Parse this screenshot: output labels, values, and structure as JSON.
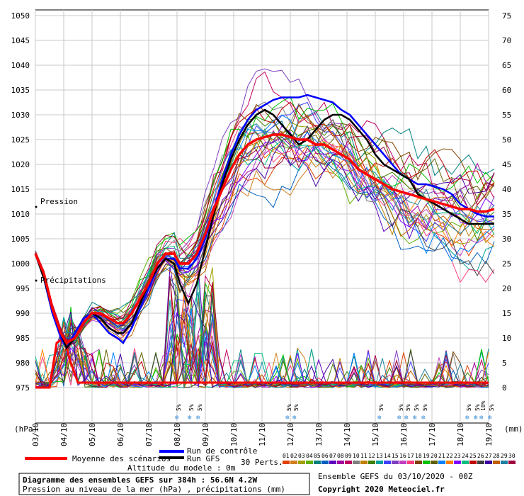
{
  "chart_data": {
    "type": "line",
    "left_axis": {
      "label": "(hPa)",
      "ylim": [
        975,
        1050
      ],
      "ticks": [
        975,
        980,
        985,
        990,
        995,
        1000,
        1005,
        1010,
        1015,
        1020,
        1025,
        1030,
        1035,
        1040,
        1045,
        1050
      ]
    },
    "right_axis": {
      "label": "(mm)",
      "ylim": [
        0,
        75
      ],
      "ticks": [
        0,
        5,
        10,
        15,
        20,
        25,
        30,
        35,
        40,
        45,
        50,
        55,
        60,
        65,
        70,
        75
      ]
    },
    "x_labels": [
      "03/10",
      "04/10",
      "05/10",
      "06/10",
      "07/10",
      "08/10",
      "09/10",
      "10/10",
      "11/10",
      "12/10",
      "13/10",
      "14/10",
      "15/10",
      "16/10",
      "17/10",
      "18/10",
      "19/10"
    ],
    "annotations": {
      "pression": "Pression",
      "precip": "Précipitations"
    },
    "snow_markers": [
      {
        "x": 8.05,
        "labels": [
          "5%"
        ]
      },
      {
        "x": 8.5,
        "labels": [
          "5%"
        ]
      },
      {
        "x": 8.8,
        "labels": [
          "5%"
        ]
      },
      {
        "x": 11.95,
        "labels": [
          "5%"
        ]
      },
      {
        "x": 12.2,
        "labels": [
          "5%"
        ]
      },
      {
        "x": 15.2,
        "labels": [
          "5%"
        ]
      },
      {
        "x": 15.9,
        "labels": [
          "5%"
        ]
      },
      {
        "x": 16.15,
        "labels": [
          "5%"
        ]
      },
      {
        "x": 16.45,
        "labels": [
          "5%"
        ]
      },
      {
        "x": 16.75,
        "labels": [
          "5%"
        ]
      },
      {
        "x": 18.3,
        "labels": [
          "5%"
        ]
      },
      {
        "x": 18.6,
        "labels": [
          "5%"
        ]
      },
      {
        "x": 18.8,
        "labels": [
          "10%"
        ]
      },
      {
        "x": 19.1,
        "labels": [
          "5%"
        ]
      }
    ],
    "series": [
      {
        "name": "Moyenne des scénarios",
        "color": "#ff0000",
        "x": [
          3,
          3.3,
          3.6,
          3.9,
          4.1,
          4.4,
          4.7,
          5,
          5.3,
          5.6,
          5.9,
          6.1,
          6.4,
          6.7,
          7,
          7.3,
          7.6,
          7.9,
          8.1,
          8.4,
          8.7,
          9,
          9.3,
          9.6,
          9.9,
          10.2,
          10.5,
          10.8,
          11.1,
          11.4,
          11.7,
          12,
          12.3,
          12.6,
          12.9,
          13.2,
          13.5,
          13.8,
          14.1,
          14.4,
          14.7,
          15,
          15.3,
          15.6,
          15.9,
          16.2,
          16.5,
          16.8,
          17.1,
          17.4,
          17.7,
          18,
          18.3,
          18.6,
          18.9,
          19.2
        ],
        "values": [
          1002,
          998,
          991,
          986,
          984,
          985,
          988,
          990,
          990,
          989,
          988,
          988,
          990,
          993,
          996,
          1000,
          1002,
          1002,
          1000,
          1000,
          1002,
          1006,
          1011,
          1015,
          1019,
          1022,
          1024,
          1025,
          1025.5,
          1026,
          1026,
          1025.5,
          1025,
          1025,
          1024,
          1024,
          1023,
          1022,
          1021,
          1019,
          1018,
          1017,
          1016,
          1015,
          1014.5,
          1014,
          1013.5,
          1013,
          1012.5,
          1012,
          1011.5,
          1011,
          1011,
          1010.5,
          1010.5,
          1011
        ]
      },
      {
        "name": "Run de contrôle",
        "color": "#0000ff",
        "x": [
          3,
          3.3,
          3.6,
          3.9,
          4.1,
          4.4,
          4.7,
          5,
          5.3,
          5.6,
          5.9,
          6.1,
          6.4,
          6.7,
          7,
          7.3,
          7.6,
          7.9,
          8.1,
          8.4,
          8.7,
          9,
          9.3,
          9.6,
          9.9,
          10.2,
          10.5,
          10.8,
          11.1,
          11.4,
          11.7,
          12,
          12.3,
          12.6,
          12.9,
          13.2,
          13.5,
          13.8,
          14.1,
          14.4,
          14.7,
          15,
          15.3,
          15.6,
          15.9,
          16.2,
          16.5,
          16.8,
          17.1,
          17.4,
          17.7,
          18,
          18.3,
          18.6,
          18.9,
          19.2
        ],
        "values": [
          1002,
          997,
          990,
          985,
          983,
          986,
          989,
          990,
          988,
          986,
          985,
          984,
          987,
          991,
          995,
          999,
          1001,
          1001,
          999,
          999,
          1001,
          1005,
          1011,
          1017,
          1022,
          1026,
          1029,
          1031,
          1032,
          1033,
          1033.5,
          1033.5,
          1033.5,
          1034,
          1033.5,
          1033,
          1032.5,
          1031,
          1030,
          1028,
          1026,
          1024,
          1022,
          1020,
          1018,
          1017,
          1016,
          1016,
          1015.5,
          1015,
          1014,
          1012,
          1011,
          1010,
          1009.5,
          1009.5
        ]
      },
      {
        "name": "Run GFS",
        "color": "#000000",
        "x": [
          3,
          3.3,
          3.6,
          3.9,
          4.1,
          4.4,
          4.7,
          5,
          5.3,
          5.6,
          5.9,
          6.1,
          6.4,
          6.7,
          7,
          7.3,
          7.6,
          7.9,
          8.1,
          8.4,
          8.7,
          9,
          9.3,
          9.6,
          9.9,
          10.2,
          10.5,
          10.8,
          11.1,
          11.4,
          11.7,
          12,
          12.3,
          12.6,
          12.9,
          13.2,
          13.5,
          13.8,
          14.1,
          14.4,
          14.7,
          15,
          15.3,
          15.6,
          15.9,
          16.2,
          16.5,
          16.8,
          17.1,
          17.4,
          17.7,
          18,
          18.3,
          18.6,
          18.9,
          19.2
        ],
        "values": [
          1002,
          997,
          991,
          986,
          983,
          985,
          988,
          990,
          989,
          987,
          986,
          986,
          988,
          992,
          996,
          999,
          1001,
          1000,
          996,
          992,
          996,
          1003,
          1010,
          1016,
          1021,
          1025,
          1028,
          1030,
          1031,
          1030,
          1028,
          1026,
          1024,
          1025,
          1027,
          1029,
          1030,
          1030,
          1029,
          1027,
          1025,
          1022,
          1020,
          1019,
          1018,
          1017,
          1014,
          1013,
          1012,
          1011,
          1010,
          1009,
          1008,
          1008,
          1008,
          1008
        ]
      }
    ],
    "ensemble_count": 30,
    "legend": {
      "control": "Run de contrôle",
      "gfs": "Run GFS",
      "mean": "Moyenne des scénarios",
      "perts": "30 Perts.",
      "pert_labels": [
        "01",
        "02",
        "03",
        "04",
        "05",
        "06",
        "07",
        "08",
        "09",
        "10",
        "11",
        "12",
        "13",
        "14",
        "15",
        "16",
        "17",
        "18",
        "19",
        "20",
        "21",
        "22",
        "23",
        "24",
        "25",
        "26",
        "27",
        "28",
        "29",
        "30"
      ],
      "pert_colors": [
        "#e04000",
        "#d08020",
        "#a0a000",
        "#60b000",
        "#008080",
        "#0060c0",
        "#6000c0",
        "#a000a0",
        "#c00060",
        "#808080",
        "#c08000",
        "#408000",
        "#00a0a0",
        "#4040ff",
        "#8040c0",
        "#c040c0",
        "#ff4080",
        "#804000",
        "#00c000",
        "#606000",
        "#0080ff",
        "#ff8000",
        "#8000ff",
        "#00c080",
        "#c00000",
        "#404040",
        "#4000a0",
        "#c06000",
        "#2080a0",
        "#a00040"
      ]
    },
    "altitude": "Altitude du modele : 0m"
  },
  "footer": {
    "title": "Diagramme des ensembles GEFS sur 384h : 56.6N 4.2W",
    "subtitle": "Pression au niveau de la mer (hPa) , précipitations (mm)",
    "ensemble": "Ensemble GEFS du 03/10/2020 - 00Z",
    "copyright": "Copyright 2020 Meteociel.fr"
  }
}
